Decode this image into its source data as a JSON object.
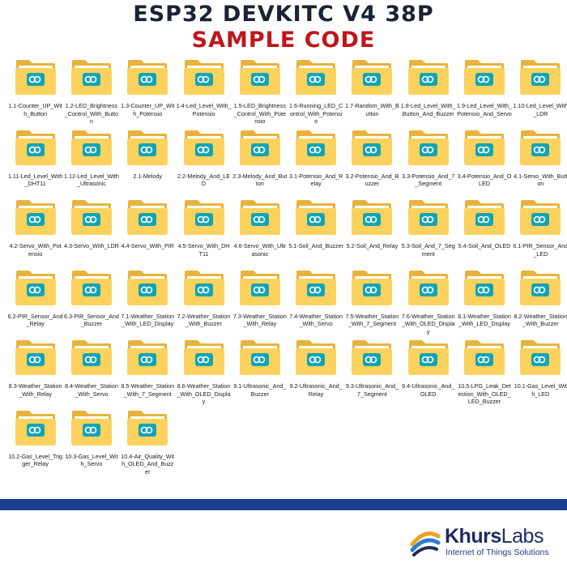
{
  "header": {
    "title": "ESP32 DEVKITC V4 38P",
    "subtitle": "SAMPLE CODE"
  },
  "folders": [
    "1.1-Counter_UP_With_Button",
    "1.2-LED_Brightness_Control_With_Button",
    "1.3-Counter_UP_With_Potensio",
    "1.4-Led_Level_With_Potensio",
    "1.5-LED_Brightness_Control_With_Potensio",
    "1.6-Running_LED_Control_With_Potensio",
    "1.7-Random_With_Button",
    "1.8-Led_Level_With_Button_And_Buzzer",
    "1.9-Led_Level_With_Potensio_And_Servo",
    "1.10-Led_Level_With_LDR",
    "1.11-Led_Level_With_DHT11",
    "1.12-Led_Level_With_Ultrasonic",
    "2.1-Melody",
    "2.2-Melody_And_LED",
    "2.3-Melody_And_Button",
    "3.1-Potensio_And_Relay",
    "3.2-Potensio_And_Buzzer",
    "3.3-Potensio_And_7_Segment",
    "3.4-Potensio_And_OLED",
    "4.1-Servo_With_Button",
    "4.2-Servo_With_Potensio",
    "4.3-Servo_With_LDR",
    "4.4-Servo_With_PIR",
    "4.5-Servo_With_DHT11",
    "4.6-Servo_With_Ultrasonic",
    "5.1-Soil_And_Buzzer",
    "5.2-Soil_And_Relay",
    "5.3-Soil_And_7_Segment",
    "5.4-Soil_And_OLED",
    "6.1-PIR_Sensor_And_LED",
    "6.2-PIR_Sensor_And_Relay",
    "6.3-PIR_Sensor_And_Buzzer",
    "7.1-Weather_Station_With_LED_Display",
    "7.2-Weather_Station_With_Buzzer",
    "7.3-Weather_Station_With_Relay",
    "7.4-Weather_Station_With_Servo",
    "7.5-Weather_Station_With_7_Segment",
    "7.6-Weather_Station_With_OLED_Display",
    "8.1-Weather_Station_With_LED_Display",
    "8.2-Weather_Station_With_Buzzer",
    "8.3-Weather_Station_With_Relay",
    "8.4-Weather_Station_With_Servo",
    "8.5-Weather_Station_With_7_Segment",
    "8.6-Weather_Station_With_OLED_Display",
    "9.1-Ultrasonic_And_Buzzer",
    "9.2-Ultrasonic_And_Relay",
    "9.3-Ultrasonic_And_7_Segment",
    "9.4-Ultrasonic_And_OLED",
    "10.5-LPG_Leak_Detection_With_OLED_LED_Buzzer",
    "10.1-Gas_Level_With_LED",
    "10.2-Gas_Level_Trigger_Relay",
    "10.3-Gas_Level_With_Servo",
    "10.4-Air_Quality_With_OLED_And_Buzzer"
  ],
  "icon": "arduino-folder-icon",
  "colors": {
    "title": "#1a2233",
    "subtitle": "#c0151b",
    "folder_back": "#e8b33c",
    "folder_front": "#fcd25e",
    "arduino_badge": "#13a4b4",
    "bar": "#1a3f8f"
  },
  "logo": {
    "brand_main": "Khurs",
    "brand_suffix": "Labs",
    "tagline": "Internet of Things Solutions"
  }
}
